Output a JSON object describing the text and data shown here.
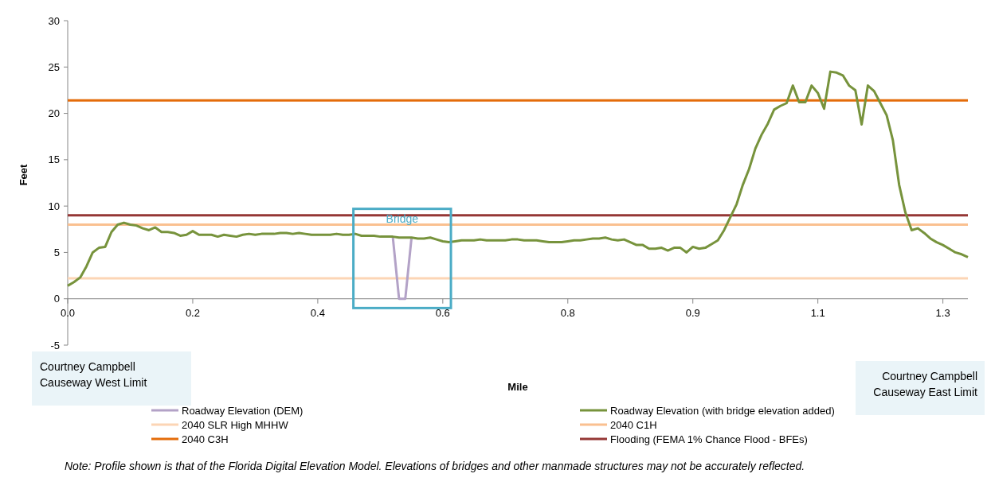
{
  "chart_data": {
    "type": "line",
    "xlabel": "Mile",
    "ylabel": "Feet",
    "categories": [
      "0.0",
      null,
      null,
      null,
      null,
      null,
      null,
      null,
      null,
      null,
      null,
      null,
      null,
      null,
      null,
      null,
      null,
      null,
      null,
      null,
      "0.2",
      null,
      null,
      null,
      null,
      null,
      null,
      null,
      null,
      null,
      null,
      null,
      null,
      null,
      null,
      null,
      null,
      null,
      null,
      null,
      "0.4",
      null,
      null,
      null,
      null,
      null,
      null,
      null,
      null,
      null,
      null,
      null,
      null,
      null,
      null,
      null,
      null,
      null,
      null,
      null,
      "0.6",
      null,
      null,
      null,
      null,
      null,
      null,
      null,
      null,
      null,
      null,
      null,
      null,
      null,
      null,
      null,
      null,
      null,
      null,
      null,
      "0.8",
      null,
      null,
      null,
      null,
      null,
      null,
      null,
      null,
      null,
      null,
      null,
      null,
      null,
      null,
      null,
      null,
      null,
      null,
      null,
      "0.9",
      null,
      null,
      null,
      null,
      null,
      null,
      null,
      null,
      null,
      null,
      null,
      null,
      null,
      null,
      null,
      null,
      null,
      null,
      null,
      "1.1",
      null,
      null,
      null,
      null,
      null,
      null,
      null,
      null,
      null,
      null,
      null,
      null,
      null,
      null,
      null,
      null,
      null,
      null,
      null,
      "1.3",
      null,
      null,
      null,
      null
    ],
    "series": [
      {
        "name": "Roadway Elevation (DEM)",
        "color": "#b3a2c7",
        "values": [
          null,
          null,
          null,
          null,
          null,
          null,
          null,
          null,
          null,
          null,
          null,
          null,
          null,
          null,
          null,
          null,
          null,
          null,
          null,
          null,
          null,
          null,
          null,
          null,
          null,
          null,
          null,
          null,
          null,
          null,
          null,
          null,
          null,
          null,
          null,
          null,
          null,
          null,
          null,
          null,
          null,
          null,
          null,
          null,
          null,
          null,
          null,
          null,
          null,
          null,
          null,
          null,
          6.7,
          0,
          0,
          6.6,
          null,
          null,
          null,
          null,
          null,
          null,
          null,
          null,
          null,
          null,
          null,
          null,
          null,
          null,
          null,
          null,
          null,
          null,
          null,
          null,
          null,
          null,
          null,
          null,
          null,
          null,
          null,
          null,
          null,
          null,
          null,
          null,
          null,
          null,
          null,
          null,
          null,
          null,
          null,
          null,
          null,
          null,
          null,
          null,
          null,
          null,
          null,
          null,
          null,
          null,
          null,
          null,
          null,
          null,
          null,
          null,
          null,
          null,
          null,
          null,
          null,
          null,
          null,
          null,
          null,
          null,
          null,
          null,
          null,
          null,
          null,
          null,
          null,
          null,
          null,
          null,
          null,
          null,
          null,
          null,
          null,
          null,
          null,
          null,
          null,
          null,
          null,
          null,
          null
        ]
      },
      {
        "name": "Roadway Elevation (with bridge elevation added)",
        "color": "#77933c",
        "values": [
          1.4,
          1.8,
          2.3,
          3.5,
          5.0,
          5.5,
          5.6,
          7.2,
          8.0,
          8.2,
          8.0,
          7.9,
          7.6,
          7.4,
          7.7,
          7.2,
          7.2,
          7.1,
          6.8,
          6.9,
          7.3,
          6.9,
          6.9,
          6.9,
          6.7,
          6.9,
          6.8,
          6.7,
          6.9,
          7.0,
          6.9,
          7.0,
          7.0,
          7.0,
          7.1,
          7.1,
          7.0,
          7.1,
          7.0,
          6.9,
          6.9,
          6.9,
          6.9,
          7.0,
          6.9,
          6.9,
          7.0,
          6.8,
          6.8,
          6.8,
          6.7,
          6.7,
          6.7,
          6.6,
          6.6,
          6.6,
          6.5,
          6.5,
          6.6,
          6.4,
          6.2,
          6.1,
          6.2,
          6.3,
          6.3,
          6.3,
          6.4,
          6.3,
          6.3,
          6.3,
          6.3,
          6.4,
          6.4,
          6.3,
          6.3,
          6.3,
          6.2,
          6.1,
          6.1,
          6.1,
          6.2,
          6.3,
          6.3,
          6.4,
          6.5,
          6.5,
          6.6,
          6.4,
          6.3,
          6.4,
          6.1,
          5.8,
          5.8,
          5.4,
          5.4,
          5.5,
          5.2,
          5.5,
          5.5,
          5.0,
          5.6,
          5.4,
          5.5,
          5.9,
          6.3,
          7.4,
          8.8,
          10.2,
          12.3,
          14.0,
          16.2,
          17.7,
          18.9,
          20.4,
          20.8,
          21.1,
          23.0,
          21.2,
          21.2,
          23.0,
          22.2,
          20.5,
          24.5,
          24.4,
          24.1,
          23.0,
          22.5,
          18.8,
          23.0,
          22.4,
          21.1,
          19.8,
          17.1,
          12.3,
          9.3,
          7.4,
          7.6,
          7.1,
          6.5,
          6.1,
          5.8,
          5.4,
          5.0,
          4.8,
          4.5
        ]
      }
    ],
    "ref_lines": [
      {
        "axis": "y",
        "value": 2.2,
        "label": "2040 SLR High MHHW",
        "color": "#fcd5b5"
      },
      {
        "axis": "y",
        "value": 8.0,
        "label": "2040 C1H",
        "color": "#fac090"
      },
      {
        "axis": "y",
        "value": 21.4,
        "label": "2040 C3H",
        "color": "#e46c0a"
      },
      {
        "axis": "y",
        "value": 9.0,
        "label": "Flooding (FEMA 1% Chance Flood  - BFEs)",
        "color": "#953735"
      }
    ],
    "ylim": [
      -5,
      30
    ],
    "yticks": [
      -5,
      0,
      5,
      10,
      15,
      20,
      25,
      30
    ],
    "legend": "bottom",
    "grid": false,
    "marker": "none",
    "annotations": [
      "Bridge",
      "Courtney Campbell Causeway West Limit",
      "Courtney Campbell Causeway East Limit",
      "Note: Profile shown is that of the Florida Digital Elevation Model.  Elevations of bridges and other manmade structures may not be accurately reflected."
    ]
  }
}
